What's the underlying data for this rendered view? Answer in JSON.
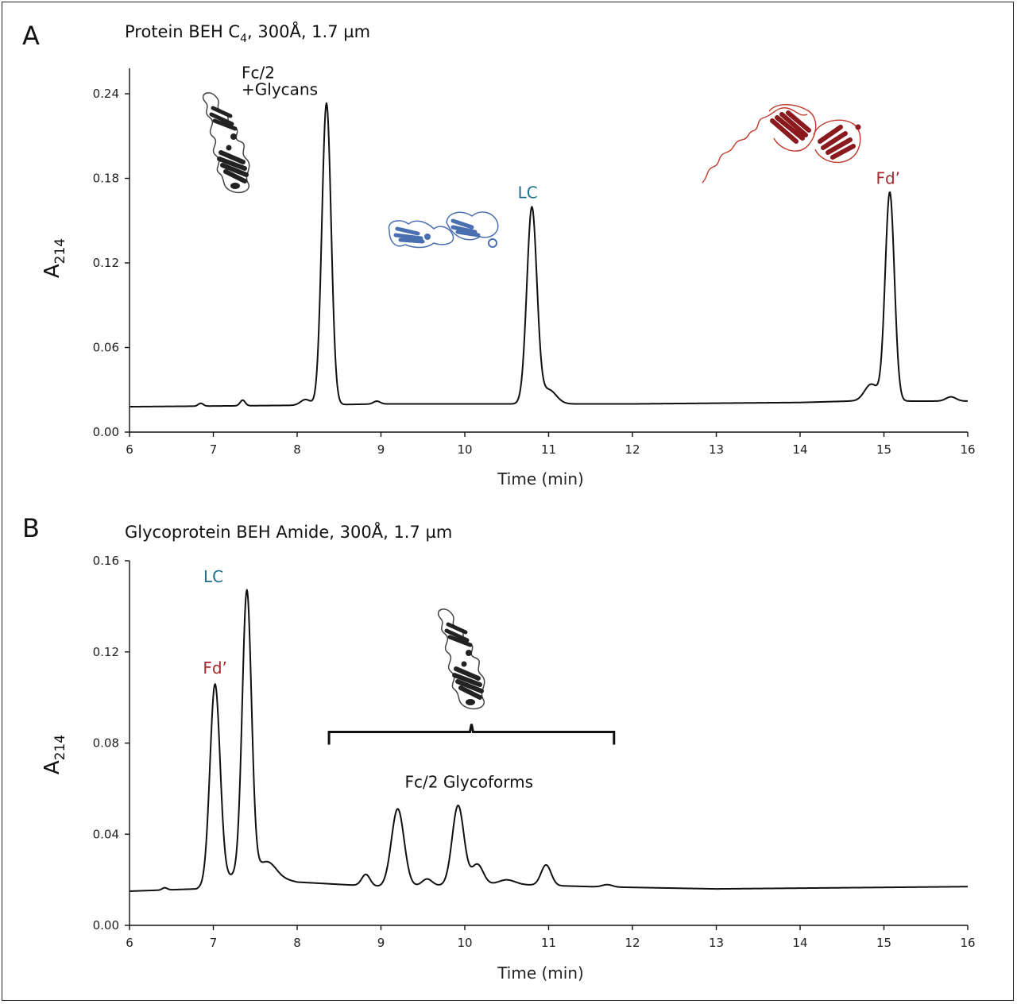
{
  "chart_data": [
    {
      "type": "line",
      "panel_label": "A",
      "title": "Protein BEH C",
      "title_sub": "4",
      "title_rest": ", 300Å, 1.7 µm",
      "xlabel": "Time (min)",
      "ylabel": "A",
      "ylabel_sub": "214",
      "xlim": [
        6,
        16
      ],
      "ylim": [
        0,
        0.26
      ],
      "xticks": [
        "6",
        "7",
        "8",
        "9",
        "10",
        "11",
        "12",
        "13",
        "14",
        "15",
        "16"
      ],
      "yticks": [
        "0.00",
        "0.06",
        "0.12",
        "0.18",
        "0.24"
      ],
      "series": [
        {
          "baseline": [
            [
              6,
              0.018
            ],
            [
              8,
              0.019
            ],
            [
              9,
              0.02
            ],
            [
              12,
              0.02
            ],
            [
              14,
              0.021
            ],
            [
              14.6,
              0.022
            ],
            [
              16,
              0.022
            ]
          ],
          "peaks": [
            [
              6.85,
              0.002,
              0.03
            ],
            [
              7.35,
              0.004,
              0.03
            ],
            [
              8.1,
              0.004,
              0.06
            ],
            [
              8.35,
              0.214,
              0.055
            ],
            [
              8.95,
              0.002,
              0.04
            ],
            [
              10.8,
              0.139,
              0.06
            ],
            [
              11.0,
              0.01,
              0.09
            ],
            [
              14.85,
              0.012,
              0.08
            ],
            [
              15.07,
              0.148,
              0.055
            ],
            [
              15.8,
              0.003,
              0.06
            ]
          ]
        }
      ],
      "annotations": [
        {
          "text": "Fc/2",
          "x": 8.3,
          "y": 0.255,
          "color": "#111111"
        },
        {
          "text": "+Glycans",
          "x": 8.3,
          "y": 0.243,
          "color": "#111111"
        },
        {
          "text": "LC",
          "x": 10.75,
          "y": 0.17,
          "color": "#1e6f8c"
        },
        {
          "text": "Fd’",
          "x": 15.05,
          "y": 0.18,
          "color": "#a8262e"
        }
      ]
    },
    {
      "type": "line",
      "panel_label": "B",
      "title": "Glycoprotein BEH Amide, 300Å, 1.7 µm",
      "xlabel": "Time (min)",
      "ylabel": "A",
      "ylabel_sub": "214",
      "xlim": [
        6,
        16
      ],
      "ylim": [
        0,
        0.16
      ],
      "xticks": [
        "6",
        "7",
        "8",
        "9",
        "10",
        "11",
        "12",
        "13",
        "14",
        "15",
        "16"
      ],
      "yticks": [
        "0.00",
        "0.04",
        "0.08",
        "0.12",
        "0.16"
      ],
      "series": [
        {
          "baseline": [
            [
              6,
              0.015
            ],
            [
              6.8,
              0.016
            ],
            [
              7.4,
              0.024
            ],
            [
              8,
              0.019
            ],
            [
              9,
              0.017
            ],
            [
              10.5,
              0.018
            ],
            [
              11.5,
              0.017
            ],
            [
              13,
              0.016
            ],
            [
              16,
              0.017
            ]
          ],
          "peaks": [
            [
              6.42,
              0.001,
              0.03
            ],
            [
              7.02,
              0.087,
              0.06
            ],
            [
              7.4,
              0.123,
              0.055
            ],
            [
              7.65,
              0.006,
              0.1
            ],
            [
              8.82,
              0.005,
              0.05
            ],
            [
              9.2,
              0.034,
              0.075
            ],
            [
              9.55,
              0.003,
              0.06
            ],
            [
              9.92,
              0.035,
              0.07
            ],
            [
              10.15,
              0.009,
              0.07
            ],
            [
              10.5,
              0.002,
              0.1
            ],
            [
              10.97,
              0.009,
              0.06
            ],
            [
              11.7,
              0.001,
              0.06
            ]
          ]
        }
      ],
      "annotations": [
        {
          "text": "Fd’",
          "x": 7.02,
          "y": 0.113,
          "color": "#a8262e"
        },
        {
          "text": "LC",
          "x": 7.0,
          "y": 0.153,
          "color": "#1e6f8c"
        },
        {
          "text": "Fc/2 Glycoforms",
          "x": 10.05,
          "y": 0.063,
          "color": "#111111"
        }
      ],
      "bracket": {
        "x_start": 8.38,
        "x_end": 11.78,
        "y": 0.08
      }
    }
  ]
}
